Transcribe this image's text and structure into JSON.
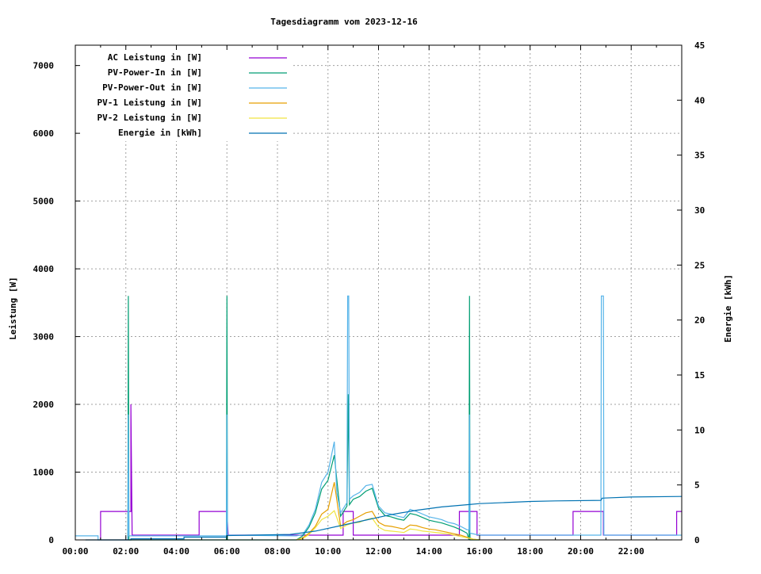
{
  "chart_data": {
    "type": "line",
    "title": "Tagesdiagramm vom 2023-12-16",
    "ylabel": "Leistung [W]",
    "y2label": "Energie [kWh]",
    "xlim": [
      0,
      24
    ],
    "ylim": [
      0,
      7300
    ],
    "y2lim": [
      0,
      45
    ],
    "grid": true,
    "legend_placement": "top-left",
    "x_ticks": [
      "00:00",
      "02:00",
      "04:00",
      "06:00",
      "08:00",
      "10:00",
      "12:00",
      "14:00",
      "16:00",
      "18:00",
      "20:00",
      "22:00"
    ],
    "y_ticks": [
      "0",
      "1000",
      "2000",
      "3000",
      "4000",
      "5000",
      "6000",
      "7000"
    ],
    "y2_ticks": [
      "0",
      "5",
      "10",
      "15",
      "20",
      "25",
      "30",
      "35",
      "40",
      "45"
    ],
    "series": [
      {
        "name": "AC Leistung in [W]",
        "color": "#9400d3",
        "axis": "left",
        "points": [
          [
            1,
            0
          ],
          [
            1,
            420
          ],
          [
            2.2,
            420
          ],
          [
            2.2,
            2000
          ],
          [
            2.25,
            70
          ],
          [
            4.9,
            70
          ],
          [
            4.9,
            420
          ],
          [
            6.0,
            420
          ],
          [
            6.05,
            70
          ],
          [
            10.6,
            70
          ],
          [
            10.6,
            420
          ],
          [
            11.0,
            420
          ],
          [
            11.0,
            70
          ],
          [
            15.2,
            70
          ],
          [
            15.2,
            420
          ],
          [
            15.9,
            420
          ],
          [
            15.9,
            70
          ],
          [
            19.7,
            70
          ],
          [
            19.7,
            420
          ],
          [
            20.9,
            420
          ],
          [
            20.9,
            70
          ],
          [
            23.8,
            70
          ],
          [
            23.8,
            420
          ],
          [
            24,
            420
          ]
        ]
      },
      {
        "name": "PV-Power-In in [W]",
        "color": "#009e73",
        "axis": "left",
        "points": [
          [
            2.08,
            0
          ],
          [
            2.1,
            3600
          ],
          [
            2.12,
            0
          ],
          [
            5.98,
            0
          ],
          [
            6.0,
            3600
          ],
          [
            6.02,
            0
          ],
          [
            8.75,
            0
          ],
          [
            9,
            60
          ],
          [
            9.25,
            190
          ],
          [
            9.5,
            400
          ],
          [
            9.75,
            750
          ],
          [
            10,
            880
          ],
          [
            10.25,
            1250
          ],
          [
            10.5,
            350
          ],
          [
            10.75,
            500
          ],
          [
            10.8,
            2150
          ],
          [
            10.85,
            520
          ],
          [
            11,
            600
          ],
          [
            11.25,
            640
          ],
          [
            11.5,
            720
          ],
          [
            11.75,
            760
          ],
          [
            12,
            470
          ],
          [
            12.25,
            360
          ],
          [
            12.5,
            340
          ],
          [
            12.75,
            310
          ],
          [
            13,
            290
          ],
          [
            13.25,
            390
          ],
          [
            13.5,
            370
          ],
          [
            13.75,
            330
          ],
          [
            14,
            290
          ],
          [
            14.25,
            270
          ],
          [
            14.5,
            250
          ],
          [
            14.75,
            220
          ],
          [
            15,
            190
          ],
          [
            15.25,
            150
          ],
          [
            15.5,
            100
          ],
          [
            15.58,
            0
          ],
          [
            15.6,
            3600
          ],
          [
            15.62,
            0
          ],
          [
            16,
            0
          ]
        ]
      },
      {
        "name": "PV-Power-Out in [W]",
        "color": "#56b4e9",
        "axis": "left",
        "points": [
          [
            0,
            60
          ],
          [
            0.9,
            60
          ],
          [
            0.9,
            0
          ],
          [
            2.08,
            0
          ],
          [
            2.1,
            1850
          ],
          [
            2.12,
            60
          ],
          [
            5.98,
            60
          ],
          [
            6.0,
            1850
          ],
          [
            6.02,
            70
          ],
          [
            8.75,
            60
          ],
          [
            9,
            80
          ],
          [
            9.25,
            220
          ],
          [
            9.5,
            450
          ],
          [
            9.75,
            850
          ],
          [
            10,
            1000
          ],
          [
            10.25,
            1450
          ],
          [
            10.35,
            700
          ],
          [
            10.5,
            400
          ],
          [
            10.75,
            550
          ],
          [
            10.78,
            3600
          ],
          [
            10.82,
            3600
          ],
          [
            10.85,
            600
          ],
          [
            11,
            650
          ],
          [
            11.25,
            700
          ],
          [
            11.5,
            800
          ],
          [
            11.75,
            820
          ],
          [
            12,
            500
          ],
          [
            12.25,
            400
          ],
          [
            12.5,
            380
          ],
          [
            12.75,
            350
          ],
          [
            13,
            330
          ],
          [
            13.25,
            450
          ],
          [
            13.5,
            420
          ],
          [
            13.75,
            380
          ],
          [
            14,
            340
          ],
          [
            14.25,
            320
          ],
          [
            14.5,
            300
          ],
          [
            14.75,
            260
          ],
          [
            15,
            240
          ],
          [
            15.25,
            200
          ],
          [
            15.5,
            150
          ],
          [
            15.58,
            150
          ],
          [
            15.6,
            1850
          ],
          [
            15.62,
            100
          ],
          [
            16,
            70
          ],
          [
            20.8,
            70
          ],
          [
            20.82,
            3600
          ],
          [
            20.9,
            3600
          ],
          [
            20.92,
            70
          ],
          [
            24,
            70
          ]
        ]
      },
      {
        "name": "PV-1 Leistung in [W]",
        "color": "#e69f00",
        "axis": "left",
        "points": [
          [
            8.75,
            0
          ],
          [
            9,
            30
          ],
          [
            9.25,
            100
          ],
          [
            9.5,
            200
          ],
          [
            9.75,
            380
          ],
          [
            10,
            450
          ],
          [
            10.25,
            850
          ],
          [
            10.5,
            200
          ],
          [
            10.75,
            270
          ],
          [
            11,
            300
          ],
          [
            11.25,
            350
          ],
          [
            11.5,
            400
          ],
          [
            11.75,
            420
          ],
          [
            12,
            260
          ],
          [
            12.25,
            210
          ],
          [
            12.5,
            200
          ],
          [
            12.75,
            180
          ],
          [
            13,
            160
          ],
          [
            13.25,
            220
          ],
          [
            13.5,
            210
          ],
          [
            13.75,
            180
          ],
          [
            14,
            160
          ],
          [
            14.25,
            150
          ],
          [
            14.5,
            130
          ],
          [
            14.75,
            110
          ],
          [
            15,
            90
          ],
          [
            15.25,
            70
          ],
          [
            15.5,
            40
          ],
          [
            15.75,
            10
          ],
          [
            16,
            0
          ]
        ]
      },
      {
        "name": "PV-2 Leistung in [W]",
        "color": "#f0e442",
        "axis": "left",
        "points": [
          [
            8.75,
            0
          ],
          [
            9,
            20
          ],
          [
            9.25,
            80
          ],
          [
            9.5,
            180
          ],
          [
            9.75,
            300
          ],
          [
            10,
            350
          ],
          [
            10.25,
            430
          ],
          [
            10.5,
            170
          ],
          [
            10.75,
            220
          ],
          [
            11,
            250
          ],
          [
            11.25,
            260
          ],
          [
            11.5,
            300
          ],
          [
            11.75,
            320
          ],
          [
            12,
            190
          ],
          [
            12.25,
            140
          ],
          [
            12.5,
            130
          ],
          [
            12.75,
            120
          ],
          [
            13,
            110
          ],
          [
            13.25,
            160
          ],
          [
            13.5,
            150
          ],
          [
            13.75,
            130
          ],
          [
            14,
            120
          ],
          [
            14.25,
            110
          ],
          [
            14.5,
            100
          ],
          [
            14.75,
            90
          ],
          [
            15,
            70
          ],
          [
            15.25,
            50
          ],
          [
            15.5,
            30
          ],
          [
            15.75,
            10
          ],
          [
            16,
            0
          ]
        ]
      },
      {
        "name": "Energie in [kWh]",
        "color": "#0072b2",
        "axis": "right",
        "points": [
          [
            0.4,
            0
          ],
          [
            2.2,
            0
          ],
          [
            2.2,
            0.1
          ],
          [
            4.3,
            0.1
          ],
          [
            4.3,
            0.25
          ],
          [
            6.0,
            0.25
          ],
          [
            6.0,
            0.4
          ],
          [
            8.5,
            0.5
          ],
          [
            9.5,
            0.8
          ],
          [
            10.5,
            1.3
          ],
          [
            11.5,
            1.8
          ],
          [
            12.5,
            2.3
          ],
          [
            13.5,
            2.7
          ],
          [
            14.5,
            3.0
          ],
          [
            15.5,
            3.2
          ],
          [
            16,
            3.3
          ],
          [
            17,
            3.4
          ],
          [
            18,
            3.5
          ],
          [
            19,
            3.55
          ],
          [
            20.8,
            3.6
          ],
          [
            20.85,
            3.8
          ],
          [
            22,
            3.9
          ],
          [
            24,
            3.95
          ]
        ]
      }
    ]
  }
}
